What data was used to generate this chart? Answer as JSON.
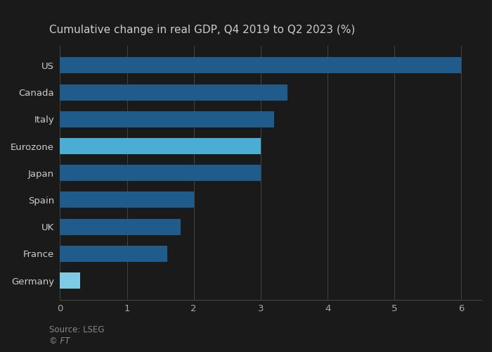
{
  "title": "Cumulative change in real GDP, Q4 2019 to Q2 2023 (%)",
  "categories": [
    "US",
    "Canada",
    "Italy",
    "Eurozone",
    "Japan",
    "Spain",
    "UK",
    "France",
    "Germany"
  ],
  "values": [
    6.0,
    3.4,
    3.2,
    3.0,
    3.0,
    2.0,
    1.8,
    1.6,
    0.3
  ],
  "bar_colors": [
    "#1f5c8b",
    "#1f5c8b",
    "#1f5c8b",
    "#4badd4",
    "#1f5c8b",
    "#1f5c8b",
    "#1f5c8b",
    "#1f5c8b",
    "#7ecbe8"
  ],
  "xlim": [
    0,
    6.3
  ],
  "xticks": [
    0,
    1,
    2,
    3,
    4,
    5,
    6
  ],
  "source_text": "Source: LSEG",
  "ft_text": "© FT",
  "title_fontsize": 11,
  "label_fontsize": 9.5,
  "tick_fontsize": 9.5,
  "background_color": "#1a1a1a",
  "plot_bg_color": "#1a1a1a",
  "label_color": "#cccccc",
  "tick_color": "#aaaaaa",
  "grid_color": "#444444",
  "title_color": "#cccccc",
  "source_color": "#888888"
}
